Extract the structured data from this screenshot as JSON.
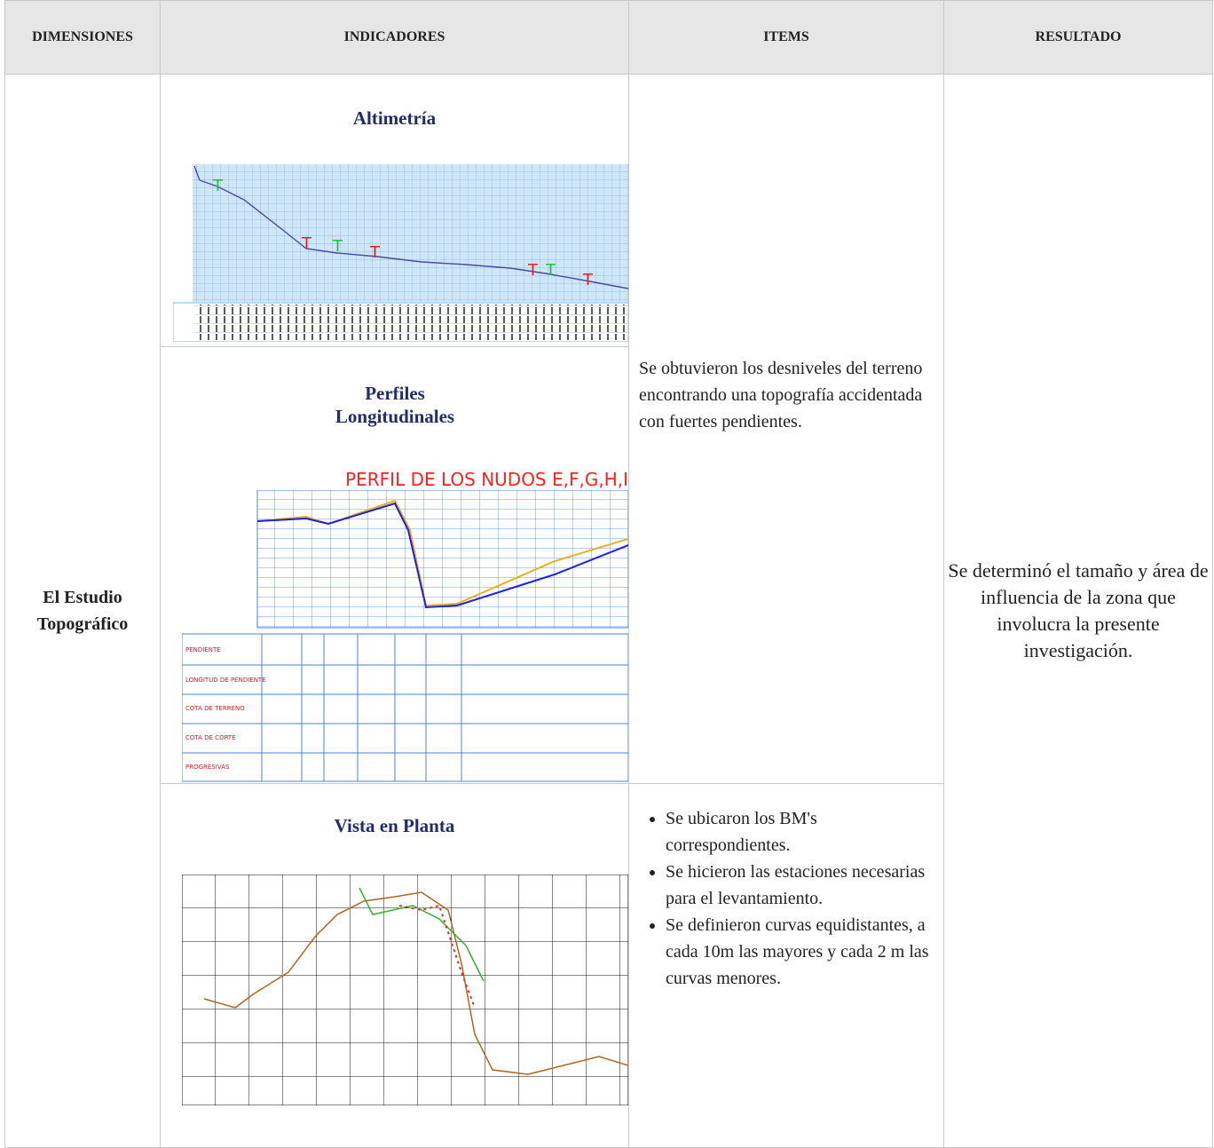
{
  "header": {
    "columns": [
      "DIMENSIONES",
      "INDICADORES",
      "ITEMS",
      "RESULTADO"
    ]
  },
  "dimension": "El Estudio Topográfico",
  "indicators": [
    {
      "title": "Altimetría"
    },
    {
      "title": "Perfiles Longitudinales",
      "figure_title": "PERFIL DE LOS NUDOS  E,F,G,H,I"
    },
    {
      "title": "Vista en Planta"
    }
  ],
  "items": [
    {
      "text": "Se obtuvieron los desniveles del terreno encontrando una topografía accidentada con fuertes pendientes."
    },
    {
      "bullets": [
        "Se ubicaron los BM's correspondientes.",
        "Se hicieron las estaciones necesarias para el levantamiento.",
        "Se definieron curvas equidistantes, a cada 10m las mayores y cada 2 m las curvas menores."
      ]
    }
  ],
  "result": "Se determinó el tamaño y área de influencia de la zona que involucra la presente investigación."
}
